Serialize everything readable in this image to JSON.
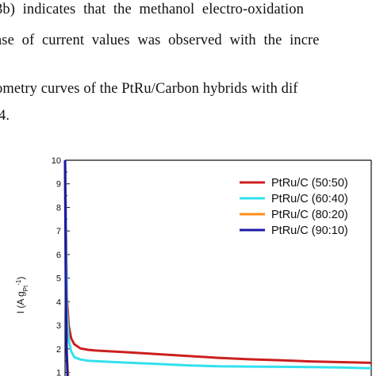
{
  "paper": {
    "lines": [
      "3b) indicates that the methanol electro-oxidation",
      "ase of current values was observed with the incre",
      "ometry curves of the PtRu/Carbon hybrids with dif",
      "4."
    ]
  },
  "chart_data": {
    "type": "line",
    "ylabel": {
      "main": "I (A g",
      "sub": "Pt",
      "sup": "-1",
      "close": ")"
    },
    "yticks": [
      "1",
      "2",
      "3",
      "4",
      "5",
      "6",
      "7",
      "8",
      "9",
      "10"
    ],
    "ylim": [
      0.85,
      10
    ],
    "xlim": [
      0,
      100
    ],
    "legend_position": "top-right",
    "series": [
      {
        "name": "PtRu/C (50:50)",
        "color": "#cc1f1f",
        "points": [
          [
            0.0,
            10.0
          ],
          [
            0.3,
            7.0
          ],
          [
            0.6,
            4.2
          ],
          [
            1.2,
            3.0
          ],
          [
            2.0,
            2.45
          ],
          [
            3.0,
            2.2
          ],
          [
            5.0,
            2.02
          ],
          [
            7.5,
            1.96
          ],
          [
            10,
            1.93
          ],
          [
            20,
            1.86
          ],
          [
            30,
            1.78
          ],
          [
            40,
            1.7
          ],
          [
            50,
            1.62
          ],
          [
            60,
            1.56
          ],
          [
            70,
            1.52
          ],
          [
            80,
            1.47
          ],
          [
            90,
            1.44
          ],
          [
            100,
            1.41
          ]
        ]
      },
      {
        "name": "PtRu/C (60:40)",
        "color": "#33e0ee",
        "points": [
          [
            0.0,
            10.0
          ],
          [
            0.3,
            6.5
          ],
          [
            0.6,
            3.6
          ],
          [
            1.2,
            2.4
          ],
          [
            2.0,
            1.9
          ],
          [
            3.0,
            1.65
          ],
          [
            5.0,
            1.55
          ],
          [
            7.5,
            1.5
          ],
          [
            10,
            1.48
          ],
          [
            20,
            1.42
          ],
          [
            30,
            1.36
          ],
          [
            40,
            1.3
          ],
          [
            50,
            1.26
          ],
          [
            60,
            1.25
          ],
          [
            70,
            1.24
          ],
          [
            80,
            1.23
          ],
          [
            90,
            1.21
          ],
          [
            100,
            1.18
          ]
        ]
      },
      {
        "name": "PtRu/C (80:20)",
        "color": "#ff8c1a",
        "points": [
          [
            0.0,
            10.0
          ],
          [
            0.3,
            4.0
          ],
          [
            0.6,
            1.8
          ],
          [
            1.0,
            0.85
          ]
        ]
      },
      {
        "name": "PtRu/C (90:10)",
        "color": "#1a1aa6",
        "points": [
          [
            0.0,
            10.0
          ],
          [
            0.25,
            5.0
          ],
          [
            0.5,
            2.0
          ],
          [
            0.8,
            0.85
          ]
        ]
      }
    ]
  }
}
